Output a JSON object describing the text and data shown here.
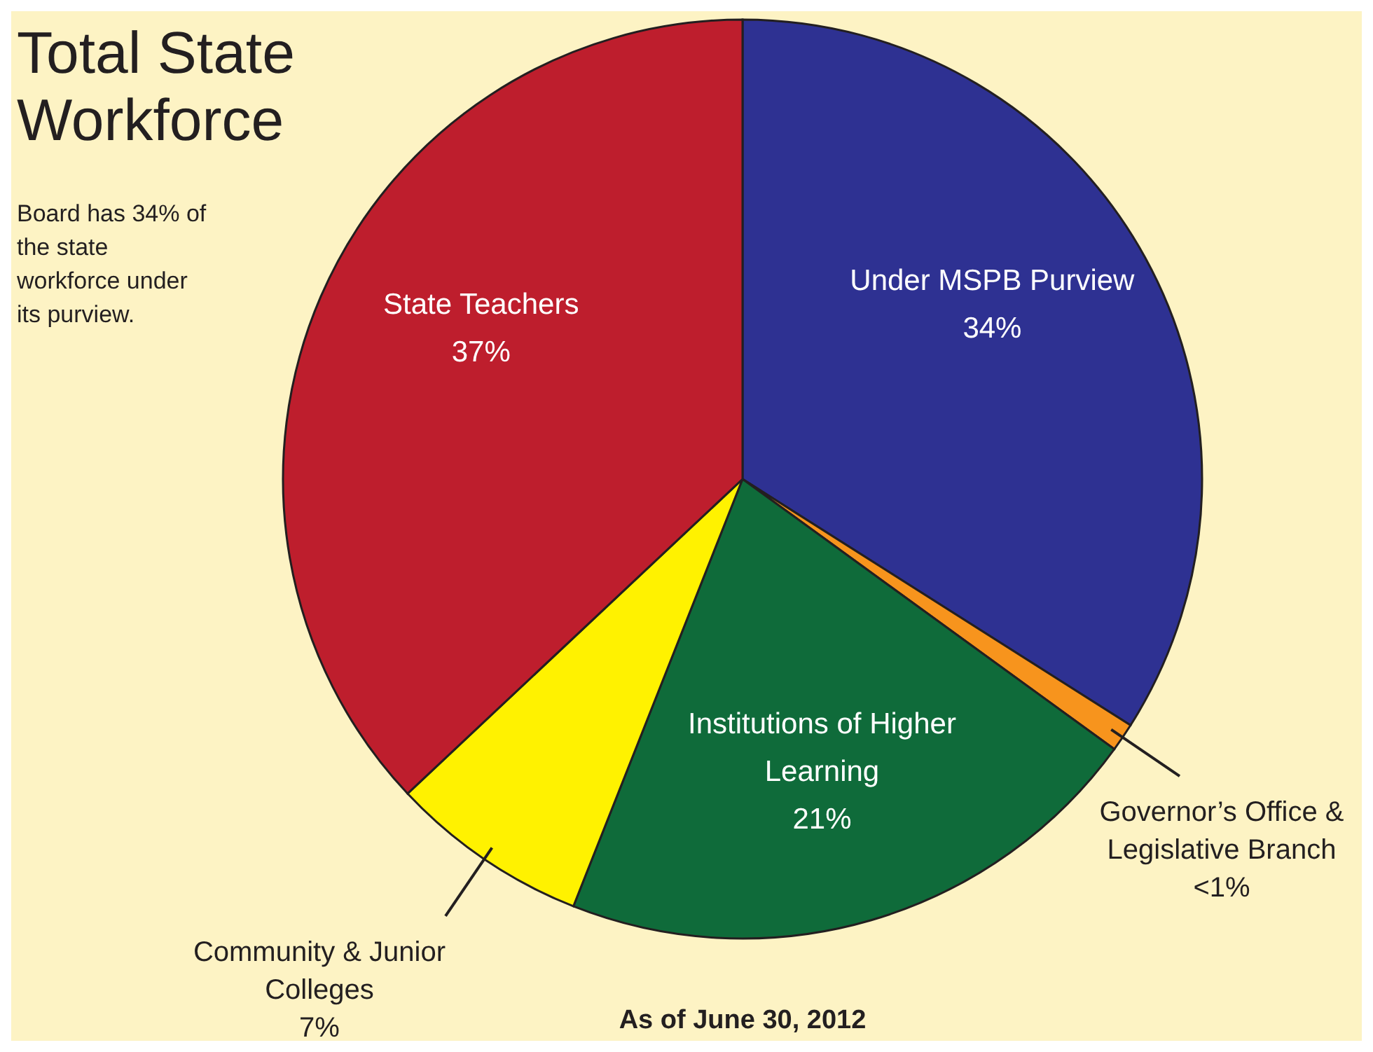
{
  "chart_data": {
    "type": "pie",
    "title": "Total State Workforce",
    "categories": [
      "Under MSPB Purview",
      "Governor’s Office & Legislative Branch",
      "Institutions of Higher Learning",
      "Community & Junior Colleges",
      "State Teachers"
    ],
    "values": [
      34,
      1,
      21,
      7,
      37
    ],
    "value_labels": [
      "34%",
      "<1%",
      "21%",
      "7%",
      "37%"
    ],
    "colors": [
      "#2e3192",
      "#f7941d",
      "#0f6b3a",
      "#fff200",
      "#be1e2d"
    ],
    "annotations": [
      "Board has 34% of the state workforce under its purview.",
      "As of June 30, 2012"
    ]
  }
}
